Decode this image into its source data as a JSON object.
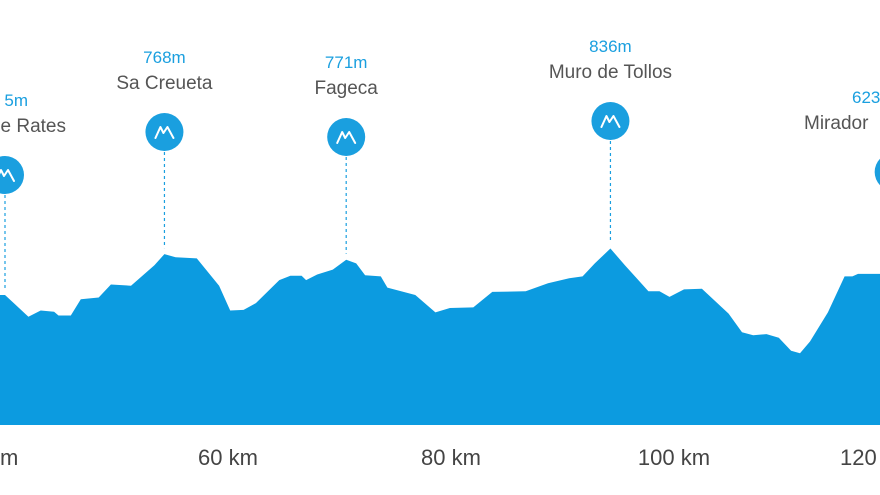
{
  "colors": {
    "profile": "#0c9be0",
    "marker": "#1a9fdf",
    "altitude_text": "#1a9fdf",
    "name_text": "#555555",
    "axis_text": "#444444"
  },
  "chart_data": {
    "type": "area",
    "xlabel": "",
    "ylabel": "",
    "x_ticks": [
      {
        "km": 40,
        "label": "m"
      },
      {
        "km": 60,
        "label": "60 km"
      },
      {
        "km": 80,
        "label": "80 km"
      },
      {
        "km": 100,
        "label": "100 km"
      },
      {
        "km": 120,
        "label": "120"
      }
    ],
    "peaks": [
      {
        "km": 40,
        "altitude": "5m",
        "name": "e Rates",
        "icon": "mountain-icon"
      },
      {
        "km": 54.3,
        "altitude": "768m",
        "name": "Sa Creueta",
        "icon": "mountain-icon"
      },
      {
        "km": 70.6,
        "altitude": "771m",
        "name": "Fageca",
        "icon": "mountain-icon"
      },
      {
        "km": 94.3,
        "altitude": "836m",
        "name": "Muro de Tollos",
        "icon": "mountain-icon"
      },
      {
        "km": 119.7,
        "altitude": "623",
        "name": "Mirador",
        "icon": "mountain-icon"
      }
    ],
    "series": [
      {
        "profile": [
          [
            40,
            600
          ],
          [
            40.9,
            585
          ],
          [
            42.1,
            565
          ],
          [
            43.2,
            575
          ],
          [
            44.4,
            573
          ],
          [
            44.8,
            567
          ],
          [
            45.9,
            567
          ],
          [
            46.8,
            593
          ],
          [
            48.4,
            596
          ],
          [
            49.5,
            617
          ],
          [
            51.3,
            615
          ],
          [
            53.4,
            648
          ],
          [
            54.3,
            666
          ],
          [
            55.3,
            661
          ],
          [
            57.2,
            659
          ],
          [
            59.2,
            615
          ],
          [
            60.2,
            575
          ],
          [
            61.4,
            576
          ],
          [
            62.5,
            587
          ],
          [
            64.6,
            624
          ],
          [
            65.6,
            631
          ],
          [
            66.6,
            631
          ],
          [
            67,
            624
          ],
          [
            68,
            633
          ],
          [
            69.4,
            641
          ],
          [
            70.6,
            657
          ],
          [
            71.5,
            651
          ],
          [
            72.3,
            632
          ],
          [
            73.7,
            630
          ],
          [
            74.3,
            612
          ],
          [
            76.8,
            600
          ],
          [
            78.6,
            572
          ],
          [
            79.9,
            579
          ],
          [
            82,
            580
          ],
          [
            83.7,
            605
          ],
          [
            86.7,
            606
          ],
          [
            88.7,
            619
          ],
          [
            90.6,
            627
          ],
          [
            91.8,
            630
          ],
          [
            92.9,
            651
          ],
          [
            94.3,
            675
          ],
          [
            95.6,
            648
          ],
          [
            97.7,
            606
          ],
          [
            98.7,
            606
          ],
          [
            99.6,
            597
          ],
          [
            100.9,
            609
          ],
          [
            102.5,
            610
          ],
          [
            104.9,
            570
          ],
          [
            106.1,
            540
          ],
          [
            107.1,
            535
          ],
          [
            108.3,
            537
          ],
          [
            109.4,
            531
          ],
          [
            110.5,
            510
          ],
          [
            111.3,
            506
          ],
          [
            112.2,
            525
          ],
          [
            113.8,
            572
          ],
          [
            115.3,
            630
          ],
          [
            116,
            630
          ],
          [
            116.5,
            634
          ]
        ]
      }
    ]
  }
}
